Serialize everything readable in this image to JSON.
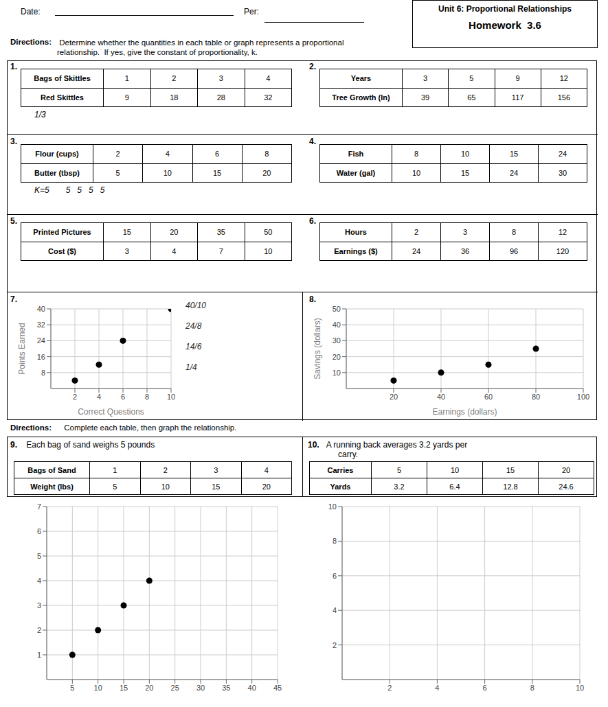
{
  "title": "Unit 6: Proportional Relationships",
  "subtitle": "Homework  3.6",
  "annotations": [
    "Date:",
    "Per:",
    "Directions:",
    " Determine whether the quantities in each table or graph represents a proportional\nrelationship.  If yes, give the constant of proportionality, k.",
    "Directions:",
    " Complete each table, then graph the relationship."
  ],
  "chart_data": [
    {
      "type": "table",
      "title": "1.",
      "series": [
        {
          "name": "Bags of Skittles",
          "values": [
            1,
            2,
            3,
            4
          ]
        },
        {
          "name": "Red Skittles",
          "values": [
            9,
            18,
            28,
            32
          ]
        }
      ],
      "annotations": [
        "1/3"
      ]
    },
    {
      "type": "table",
      "title": "2.",
      "series": [
        {
          "name": "Years",
          "values": [
            3,
            5,
            9,
            12
          ]
        },
        {
          "name": "Tree Growth (In)",
          "values": [
            39,
            65,
            117,
            156
          ]
        }
      ]
    },
    {
      "type": "table",
      "title": "3.",
      "series": [
        {
          "name": "Flour (cups)",
          "values": [
            2,
            4,
            6,
            8
          ]
        },
        {
          "name": "Butter (tbsp)",
          "values": [
            5,
            10,
            15,
            20
          ]
        }
      ],
      "annotations": [
        "K=5",
        "5   5   5   5"
      ]
    },
    {
      "type": "table",
      "title": "4.",
      "series": [
        {
          "name": "Fish",
          "values": [
            8,
            10,
            15,
            24
          ]
        },
        {
          "name": "Water (gal)",
          "values": [
            10,
            15,
            24,
            30
          ]
        }
      ]
    },
    {
      "type": "table",
      "title": "5.",
      "series": [
        {
          "name": "Printed Pictures",
          "values": [
            15,
            20,
            35,
            50
          ]
        },
        {
          "name": "Cost ($)",
          "values": [
            3,
            4,
            7,
            10
          ]
        }
      ]
    },
    {
      "type": "table",
      "title": "6.",
      "series": [
        {
          "name": "Hours",
          "values": [
            2,
            3,
            8,
            12
          ]
        },
        {
          "name": "Earnings ($)",
          "values": [
            24,
            36,
            96,
            120
          ]
        }
      ]
    },
    {
      "type": "scatter",
      "title": "7.",
      "xlabel": "Correct Questions",
      "ylabel": "Points Earned",
      "x": [
        2,
        4,
        6,
        10
      ],
      "values": [
        4,
        12,
        24,
        40
      ],
      "xlim": [
        0,
        10
      ],
      "ylim": [
        0,
        40
      ],
      "xticks": [
        2,
        4,
        6,
        8,
        10
      ],
      "yticks": [
        8,
        16,
        24,
        32,
        40
      ],
      "grid": true,
      "color": "#000000",
      "annotations": [
        "40/10",
        "24/8",
        "14/6",
        "1/4"
      ]
    },
    {
      "type": "scatter",
      "title": "8.",
      "xlabel": "Earnings (dollars)",
      "ylabel": "Savings (dollars)",
      "x": [
        20,
        40,
        60,
        80
      ],
      "values": [
        5,
        10,
        15,
        25
      ],
      "xlim": [
        0,
        100
      ],
      "ylim": [
        0,
        50
      ],
      "xticks": [
        20,
        40,
        60,
        80,
        100
      ],
      "yticks": [
        10,
        20,
        30,
        40,
        50
      ],
      "grid": true,
      "color": "#000000"
    },
    {
      "type": "table",
      "title": "9.",
      "subtitle": " Each bag of sand weighs 5 pounds",
      "series": [
        {
          "name": "Bags of Sand",
          "values": [
            1,
            2,
            3,
            4
          ]
        },
        {
          "name": "Weight (lbs)",
          "values": [
            5,
            10,
            15,
            20
          ]
        }
      ]
    },
    {
      "type": "table",
      "title": "10.",
      "subtitle": " A running back averages 3.2 yards per\n      carry.",
      "series": [
        {
          "name": "Carries",
          "values": [
            5,
            10,
            15,
            20
          ]
        },
        {
          "name": "Yards",
          "values": [
            3.2,
            6.4,
            12.8,
            24.6
          ]
        }
      ]
    },
    {
      "type": "scatter",
      "x": [
        5,
        10,
        15,
        20
      ],
      "values": [
        1,
        2,
        3,
        4
      ],
      "xlim": [
        0,
        45
      ],
      "ylim": [
        0,
        7
      ],
      "xticks": [
        5,
        10,
        15,
        20,
        25,
        30,
        35,
        40,
        45
      ],
      "yticks": [
        1,
        2,
        3,
        4,
        5,
        6,
        7
      ],
      "grid": true,
      "color": "#000000"
    },
    {
      "type": "scatter",
      "x": [],
      "values": [],
      "xlim": [
        0,
        10
      ],
      "ylim": [
        0,
        10
      ],
      "xticks": [
        2,
        4,
        6,
        8,
        10
      ],
      "yticks": [
        2,
        4,
        6,
        8,
        10
      ],
      "grid": true
    }
  ]
}
